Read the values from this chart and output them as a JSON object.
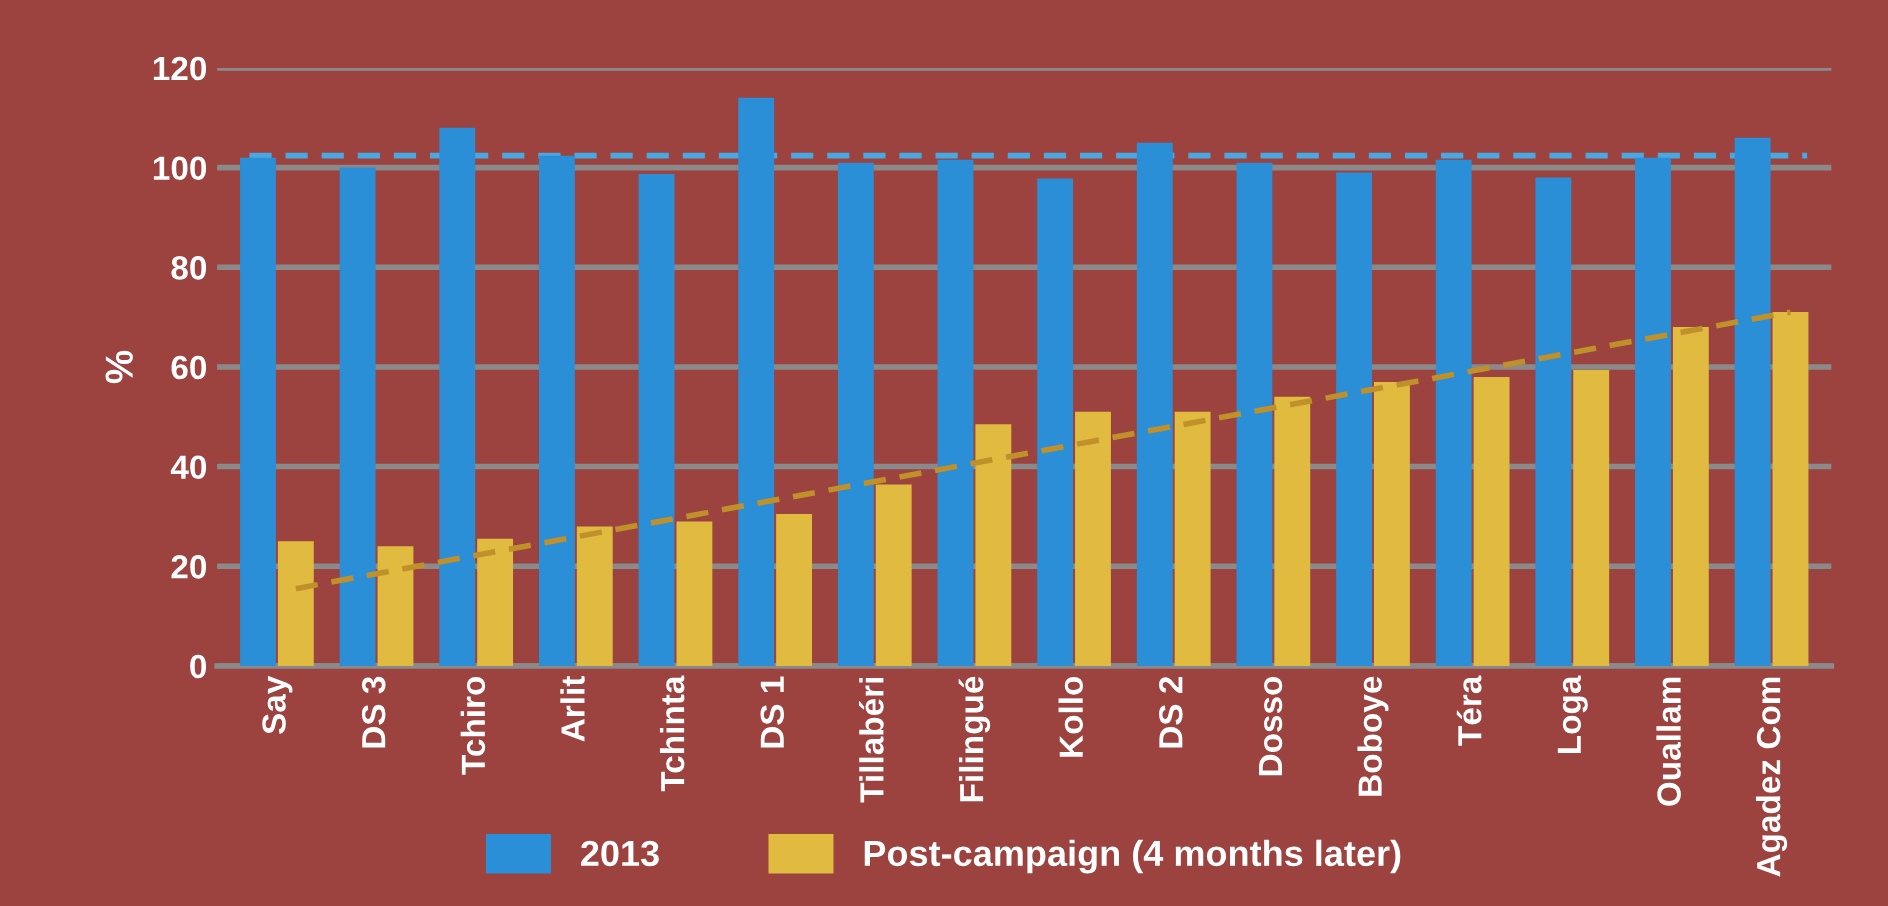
{
  "chart_data": {
    "type": "bar",
    "ylabel": "%",
    "categories": [
      "Say",
      "DS 3",
      "Tchiro",
      "Arlit",
      "Tchinta",
      "DS 1",
      "Tillabéri",
      "Filingué",
      "Kollo",
      "DS 2",
      "Dosso",
      "Boboye",
      "Téra",
      "Loga",
      "Ouallam",
      "Agadez Com"
    ],
    "series": [
      {
        "name": "2013",
        "color": "#2a8fd6",
        "values": [
          102,
          100,
          108,
          102.4,
          98.7,
          114,
          101,
          101.6,
          97.8,
          105,
          101,
          99,
          101.6,
          98,
          102,
          106
        ]
      },
      {
        "name": "Post-campaign (4 months later)",
        "color": "#e0bb40",
        "values": [
          25,
          24,
          25.5,
          28,
          29,
          30.5,
          36.4,
          48.5,
          51,
          51,
          54,
          57,
          58,
          59.4,
          68,
          71
        ]
      },
      {
        "type": "line",
        "color": "#c0902a",
        "line_style": "dashed",
        "values": [
          15.5,
          19.2,
          22.9,
          26.6,
          30.3,
          34.0,
          37.7,
          41.4,
          45.1,
          48.8,
          52.5,
          56.2,
          59.9,
          63.6,
          67.3,
          71.0
        ]
      }
    ],
    "ref_lines": [
      {
        "axis": "y",
        "value": 102.4,
        "color": "#4aa8e0",
        "line_style": "dashed"
      }
    ],
    "ylim": [
      0,
      120
    ],
    "yticks": [
      0,
      20,
      40,
      60,
      80,
      100,
      120
    ],
    "grid": "y",
    "legend": "bottom"
  }
}
